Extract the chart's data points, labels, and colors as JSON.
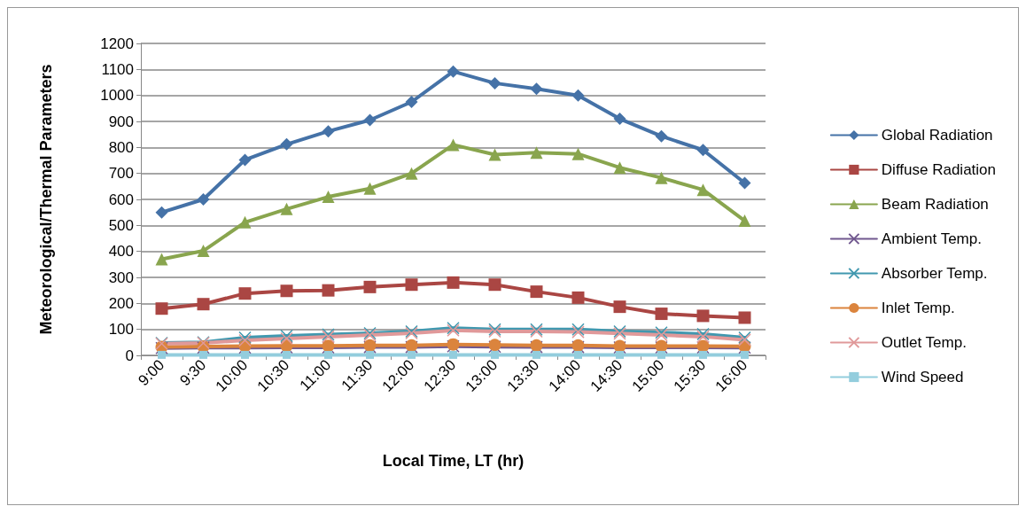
{
  "chart_data": {
    "type": "line",
    "xlabel": "Local Time, LT (hr)",
    "ylabel": "Meteorological/Thermal Parameters",
    "categories": [
      "9:00",
      "9:30",
      "10:00",
      "10:30",
      "11:00",
      "11:30",
      "12:00",
      "12:30",
      "13:00",
      "13:30",
      "14:00",
      "14:30",
      "15:00",
      "15:30",
      "16:00"
    ],
    "ylim": [
      0,
      1200
    ],
    "yticks": [
      0,
      100,
      200,
      300,
      400,
      500,
      600,
      700,
      800,
      900,
      1000,
      1100,
      1200
    ],
    "grid": "y",
    "legend": "right",
    "series": [
      {
        "name": "Global Radiation",
        "color": "#4572a7",
        "marker": "diamond",
        "values": [
          550,
          600,
          752,
          812,
          862,
          905,
          975,
          1092,
          1047,
          1025,
          1000,
          910,
          843,
          790,
          663
        ]
      },
      {
        "name": "Diffuse Radiation",
        "color": "#aa4643",
        "marker": "square",
        "values": [
          180,
          197,
          238,
          248,
          250,
          263,
          272,
          280,
          272,
          245,
          222,
          187,
          160,
          152,
          145
        ]
      },
      {
        "name": "Beam Radiation",
        "color": "#89a54e",
        "marker": "triangle",
        "values": [
          370,
          402,
          512,
          563,
          610,
          642,
          700,
          810,
          772,
          780,
          775,
          722,
          683,
          637,
          518
        ]
      },
      {
        "name": "Ambient Temp.",
        "color": "#71588f",
        "marker": "cross",
        "values": [
          28,
          30,
          30,
          31,
          31,
          32,
          32,
          35,
          33,
          32,
          32,
          31,
          31,
          31,
          30
        ]
      },
      {
        "name": "Absorber Temp.",
        "color": "#4198af",
        "marker": "cross",
        "values": [
          48,
          50,
          68,
          75,
          80,
          85,
          92,
          105,
          100,
          100,
          100,
          92,
          88,
          82,
          68
        ]
      },
      {
        "name": "Inlet Temp.",
        "color": "#db843d",
        "marker": "circle",
        "values": [
          32,
          34,
          36,
          37,
          37,
          38,
          38,
          42,
          40,
          38,
          38,
          36,
          36,
          36,
          35
        ]
      },
      {
        "name": "Outlet Temp.",
        "color": "#e0999a",
        "marker": "cross",
        "values": [
          45,
          48,
          58,
          65,
          72,
          78,
          85,
          96,
          92,
          92,
          90,
          84,
          78,
          72,
          60
        ]
      },
      {
        "name": "Wind Speed",
        "color": "#93cddd",
        "marker": "square",
        "values": [
          2,
          2,
          2,
          2,
          2,
          2,
          2,
          2,
          2,
          2,
          2,
          2,
          2,
          2,
          2
        ]
      }
    ]
  }
}
